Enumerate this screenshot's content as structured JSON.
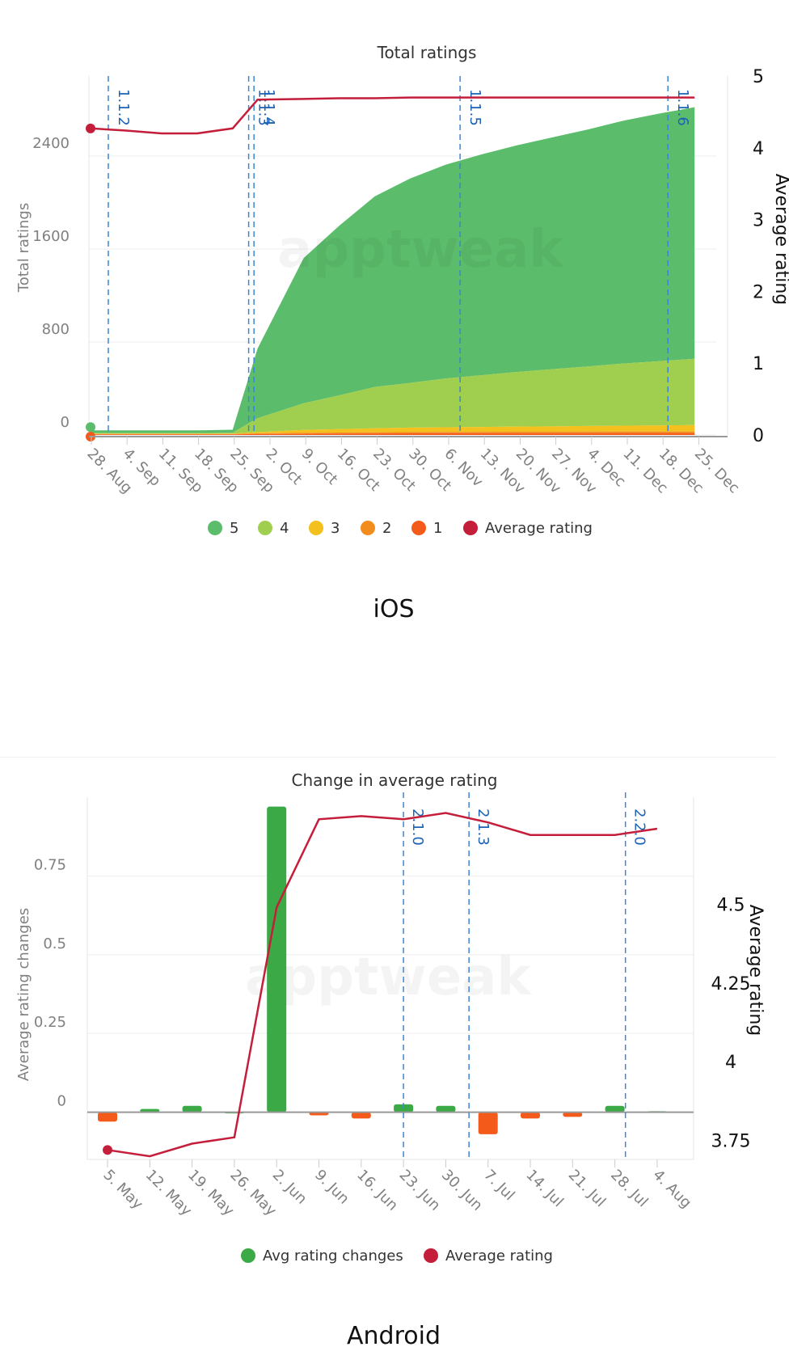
{
  "labels": {
    "ios": "iOS",
    "android": "Android"
  },
  "watermark": "apptweak",
  "colors": {
    "r5": "#5bbd6b",
    "r4": "#a0cf50",
    "r3": "#f4c01e",
    "r2": "#f28c1c",
    "r1": "#f45b1a",
    "avg": "#c41e3a",
    "versions": "#3b86d6",
    "avg_changes_pos": "#3aa946",
    "avg_changes_neg": "#f45b1a"
  },
  "chart_data": [
    {
      "type": "area",
      "title": "Total ratings",
      "ylabel": "Total ratings",
      "y2label": "Average rating",
      "ylim": [
        0,
        3200
      ],
      "y2lim": [
        0,
        5
      ],
      "yticks": [
        "0",
        "800",
        "1600",
        "2400"
      ],
      "y2ticks": [
        "0",
        "1",
        "2",
        "3",
        "4",
        "5"
      ],
      "categories": [
        "28. Aug",
        "4. Sep",
        "11. Sep",
        "18. Sep",
        "25. Sep",
        "2. Oct",
        "9. Oct",
        "16. Oct",
        "23. Oct",
        "30. Oct",
        "6. Nov",
        "13. Nov",
        "20. Nov",
        "27. Nov",
        "4. Dec",
        "11. Dec",
        "18. Dec",
        "25. Dec"
      ],
      "x": [
        0,
        1,
        2,
        3,
        4,
        4.7,
        6,
        7,
        8,
        9,
        10,
        11,
        12,
        13,
        14,
        15,
        16,
        17
      ],
      "stacked": true,
      "series": [
        {
          "name": "1",
          "color_key": "r1",
          "values": [
            5,
            5,
            5,
            5,
            5,
            8,
            10,
            12,
            13,
            14,
            15,
            15,
            16,
            16,
            16,
            17,
            17,
            17
          ]
        },
        {
          "name": "2",
          "color_key": "r2",
          "values": [
            3,
            3,
            3,
            3,
            3,
            6,
            8,
            9,
            10,
            11,
            11,
            12,
            12,
            12,
            13,
            13,
            13,
            13
          ]
        },
        {
          "name": "3",
          "color_key": "r3",
          "values": [
            3,
            3,
            3,
            3,
            3,
            10,
            25,
            30,
            35,
            38,
            40,
            42,
            44,
            46,
            48,
            50,
            52,
            55
          ]
        },
        {
          "name": "4",
          "color_key": "r4",
          "values": [
            6,
            6,
            6,
            6,
            8,
            120,
            230,
            290,
            355,
            385,
            420,
            445,
            470,
            492,
            512,
            535,
            553,
            570
          ]
        },
        {
          "name": "5",
          "color_key": "r5",
          "values": [
            23,
            23,
            23,
            23,
            26,
            600,
            1250,
            1460,
            1640,
            1760,
            1840,
            1900,
            1950,
            1995,
            2040,
            2090,
            2130,
            2165
          ]
        }
      ],
      "avg_series": {
        "name": "Average rating",
        "values": [
          4.27,
          4.24,
          4.2,
          4.2,
          4.27,
          4.67,
          4.68,
          4.69,
          4.69,
          4.7,
          4.7,
          4.7,
          4.7,
          4.7,
          4.7,
          4.7,
          4.7,
          4.7
        ]
      },
      "versions": [
        {
          "label": "1.1.2",
          "x": 0.5
        },
        {
          "label": "1.1.3",
          "x": 4.45
        },
        {
          "label": "1.1.4",
          "x": 4.6
        },
        {
          "label": "1.1.5",
          "x": 10.4
        },
        {
          "label": "1.1.6",
          "x": 16.25
        }
      ],
      "legend": [
        "5",
        "4",
        "3",
        "2",
        "1",
        "Average rating"
      ],
      "legend_position": "bottom-center"
    },
    {
      "type": "bar",
      "title": "Change in average rating",
      "ylabel": "Average rating changes",
      "y2label": "Average rating",
      "ylim": [
        -0.15,
        1.0
      ],
      "y2lim": [
        3.69,
        4.84
      ],
      "yticks": [
        "0",
        "0.25",
        "0.5",
        "0.75"
      ],
      "y2ticks": [
        "3.75",
        "4",
        "4.25",
        "4.5"
      ],
      "categories": [
        "5. May",
        "12. May",
        "19. May",
        "26. May",
        "2. Jun",
        "9. Jun",
        "16. Jun",
        "23. Jun",
        "30. Jun",
        "7. Jul",
        "14. Jul",
        "21. Jul",
        "28. Jul",
        "4. Aug"
      ],
      "series": [
        {
          "name": "Avg rating changes",
          "values": [
            -0.03,
            0.01,
            0.02,
            0,
            0.97,
            -0.01,
            -0.02,
            0.025,
            0.02,
            -0.07,
            -0.02,
            -0.015,
            0.02,
            0.003
          ]
        }
      ],
      "avg_series": {
        "name": "Average rating",
        "values": [
          3.72,
          3.7,
          3.74,
          3.76,
          4.49,
          4.77,
          4.78,
          4.77,
          4.79,
          4.76,
          4.72,
          4.72,
          4.72,
          4.74
        ]
      },
      "versions": [
        {
          "label": "2.1.0",
          "x": 7
        },
        {
          "label": "2.1.3",
          "x": 8.55
        },
        {
          "label": "2.2.0",
          "x": 12.25
        }
      ],
      "legend": [
        "Avg rating changes",
        "Average rating"
      ],
      "legend_position": "bottom-center"
    }
  ]
}
